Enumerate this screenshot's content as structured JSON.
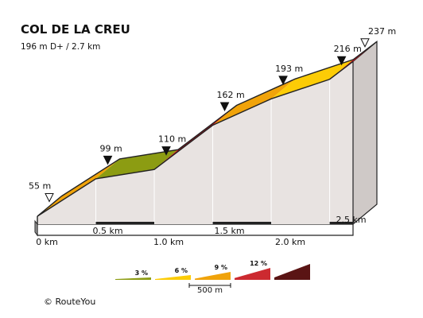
{
  "header": {
    "title": "COL DE LA CREU",
    "subtitle": "196 m D+ / 2.7 km"
  },
  "chart_data": {
    "type": "area",
    "title": "COL DE LA CREU",
    "subtitle": "196 m D+ / 2.7 km",
    "x_unit": "km",
    "y_unit": "m",
    "xlim": [
      0,
      2.7
    ],
    "ylim": [
      55,
      237
    ],
    "points": [
      {
        "x": 0.0,
        "y": 55,
        "label": "55 m",
        "marker": "open"
      },
      {
        "x": 0.5,
        "y": 99,
        "label": "99 m",
        "marker": "filled"
      },
      {
        "x": 1.0,
        "y": 110,
        "label": "110 m",
        "marker": "filled"
      },
      {
        "x": 1.5,
        "y": 162,
        "label": "162 m",
        "marker": "filled"
      },
      {
        "x": 2.0,
        "y": 193,
        "label": "193 m",
        "marker": "filled"
      },
      {
        "x": 2.5,
        "y": 216,
        "label": "216 m",
        "marker": "filled"
      },
      {
        "x": 2.7,
        "y": 237,
        "label": "237 m",
        "marker": "open"
      }
    ],
    "segment_colors": [
      "#f0a30a",
      "#8c9c12",
      "#cc0e1e",
      "#f0a30a",
      "#fccc06",
      "#cc0e1e"
    ],
    "x_ticks": [
      {
        "x": 0.0,
        "label": "0 km"
      },
      {
        "x": 0.5,
        "label": "0.5 km"
      },
      {
        "x": 1.0,
        "label": "1.0 km"
      },
      {
        "x": 1.5,
        "label": "1.5 km"
      },
      {
        "x": 2.0,
        "label": "2.0 km"
      },
      {
        "x": 2.5,
        "label": "2.5 km"
      }
    ],
    "legend": {
      "items": [
        {
          "label": "3 %",
          "color": "#8c9c12"
        },
        {
          "label": "6 %",
          "color": "#fccc06"
        },
        {
          "label": "9 %",
          "color": "#f0a30a"
        },
        {
          "label": "12 %",
          "color": "#cc2a30"
        },
        {
          "label": "",
          "color": "#5a1414"
        }
      ],
      "scale_label": "500 m"
    }
  },
  "footer": {
    "copyright": "© RouteYou"
  }
}
